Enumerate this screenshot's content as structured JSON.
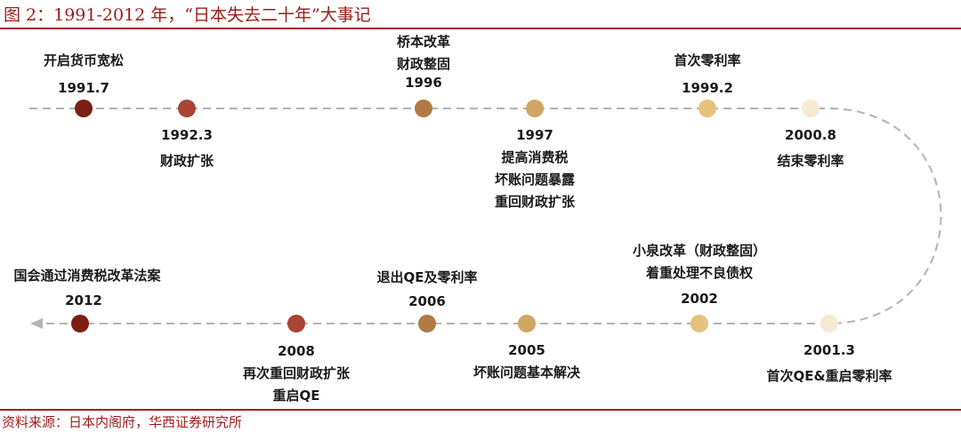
{
  "title": "图 2：1991-2012 年，“日本失去二十年”大事记",
  "source": "资料来源：日本内阁府，华西证券研究所",
  "events": [
    {
      "year": "1991.7",
      "lines": [
        "开启货币宽松"
      ],
      "color": "#7a1f12"
    },
    {
      "year": "1992.3",
      "lines": [
        "财政扩张"
      ],
      "color": "#a94436"
    },
    {
      "year": "1996",
      "lines": [
        "桥本改革",
        "财政整固"
      ],
      "color": "#b07a45"
    },
    {
      "year": "1997",
      "lines": [
        "提高消费税",
        "坏账问题暴露",
        "重回财政扩张"
      ],
      "color": "#d0a665"
    },
    {
      "year": "1999.2",
      "lines": [
        "首次零利率"
      ],
      "color": "#e6c27a"
    },
    {
      "year": "2000.8",
      "lines": [
        "结束零利率"
      ],
      "color": "#f7ead2"
    },
    {
      "year": "2001.3",
      "lines": [
        "首次QE&重启零利率"
      ],
      "color": "#f7ead2"
    },
    {
      "year": "2002",
      "lines": [
        "小泉改革（财政整固）",
        "着重处理不良债权"
      ],
      "color": "#e6c27a"
    },
    {
      "year": "2005",
      "lines": [
        "坏账问题基本解决"
      ],
      "color": "#d0a665"
    },
    {
      "year": "2006",
      "lines": [
        "退出QE及零利率"
      ],
      "color": "#b07a45"
    },
    {
      "year": "2008",
      "lines": [
        "再次重回财政扩张",
        "重启QE"
      ],
      "color": "#a94436"
    },
    {
      "year": "2012",
      "lines": [
        "国会通过消费税改革法案"
      ],
      "color": "#7a1f12"
    }
  ]
}
